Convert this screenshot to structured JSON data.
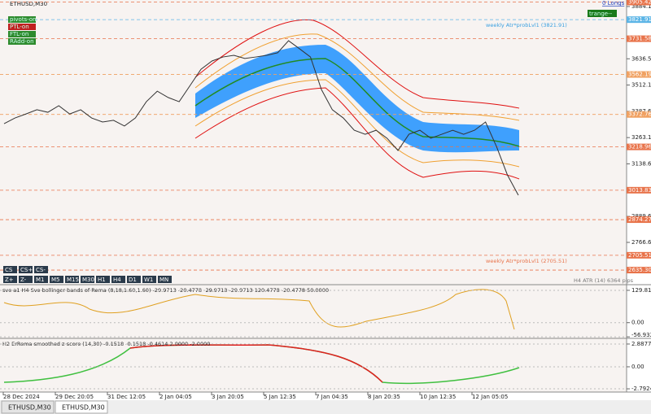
{
  "window": {
    "symbol": "ETHUSD,M30",
    "tabs": [
      "ETHUSD,M30",
      "ETHUSD,M30"
    ]
  },
  "toggles": [
    "pivots-on",
    "PTL-on",
    "FTL-on",
    "RAdd-on"
  ],
  "top_right": [
    "0 Longs",
    "trange--"
  ],
  "price_panel": {
    "ylim": [
      2624,
      3915
    ],
    "yticks": [
      {
        "value": 3884.1,
        "label": "3884.10"
      },
      {
        "value": 3636.5,
        "label": "3636.50"
      },
      {
        "value": 3512.1,
        "label": "3512.10"
      },
      {
        "value": 3387.6,
        "label": "3387.60"
      },
      {
        "value": 3263.1,
        "label": "3263.10"
      },
      {
        "value": 3138.6,
        "label": "3138.60"
      },
      {
        "value": 2889.6,
        "label": "2889.60"
      },
      {
        "value": 2766.6,
        "label": "2766.60"
      }
    ],
    "levels": [
      {
        "value": 3905.42,
        "label": "3905.42",
        "color": "#e8734a"
      },
      {
        "value": 3821.91,
        "label": "3821.91",
        "color": "#5ab4e6"
      },
      {
        "value": 3731.58,
        "label": "3731.58",
        "color": "#e8734a"
      },
      {
        "value": 3562.19,
        "label": "3562.19",
        "color": "#f0a060"
      },
      {
        "value": 3372.76,
        "label": "3372.76",
        "color": "#f0a060"
      },
      {
        "value": 3218.96,
        "label": "3218.96",
        "color": "#e8734a"
      },
      {
        "value": 3013.83,
        "label": "3013.83",
        "color": "#e8734a"
      },
      {
        "value": 2874.27,
        "label": "2874.27",
        "color": "#e8734a"
      },
      {
        "value": 2705.51,
        "label": "2705.51",
        "color": "#e8734a"
      },
      {
        "value": 2635.3,
        "label": "2635.30",
        "color": "#e8734a"
      }
    ],
    "close": [
      3329,
      3356,
      3375,
      3395,
      3383,
      3414,
      3375,
      3395,
      3356,
      3337,
      3345,
      3318,
      3356,
      3433,
      3483,
      3453,
      3433,
      3510,
      3587,
      3626,
      3645,
      3653,
      3638,
      3645,
      3653,
      3665,
      3722,
      3684,
      3645,
      3491,
      3395,
      3356,
      3298,
      3279,
      3298,
      3260,
      3202,
      3279,
      3298,
      3260,
      3279,
      3298,
      3279,
      3298,
      3337,
      3221,
      3086,
      2990
    ],
    "annotations": [
      "weekly Atr*probLvl1 (3821.91)",
      "weekly Atr*probLvl1 (2705.51)",
      "H4 ATR (14) 6364 pips"
    ]
  },
  "cs_buttons": [
    "CS",
    "CS+",
    "CS-"
  ],
  "tf_buttons": [
    "Z+",
    "Z-",
    "M1",
    "M5",
    "M15",
    "M30",
    "H1",
    "H4",
    "D1",
    "W1",
    "MN"
  ],
  "time_axis": [
    "28 Dec 2024",
    "29 Dec 20:05",
    "31 Dec 12:05",
    "2 Jan 04:05",
    "3 Jan 20:05",
    "5 Jan 12:35",
    "7 Jan 04:35",
    "8 Jan 20:35",
    "10 Jan 12:35",
    "12 Jan 05:05"
  ],
  "sub1": {
    "title": "sve a1 H4 Sve bollinger bands of Rema (8,18,1.60,1.60) -29.9713 -20.4778 -29.9713 -29.9713 120.4778 -20.4778 50.0000",
    "ylim": [
      -63,
      146
    ],
    "yticks": [
      {
        "value": 129.8156,
        "label": "129.8156"
      },
      {
        "value": 0,
        "label": "0.00"
      },
      {
        "value": -56.9328,
        "label": "-56.9328"
      }
    ]
  },
  "sub2": {
    "title": "H2 ErRema smoothed z-score (14,30) -0.1518 -0.1518 -0.4614 2.0000 -2.0000",
    "ylim": [
      -3.2,
      3.4
    ],
    "yticks": [
      2.8877,
      {
        "value": 0,
        "label": "0.00"
      },
      -2.7924
    ]
  }
}
